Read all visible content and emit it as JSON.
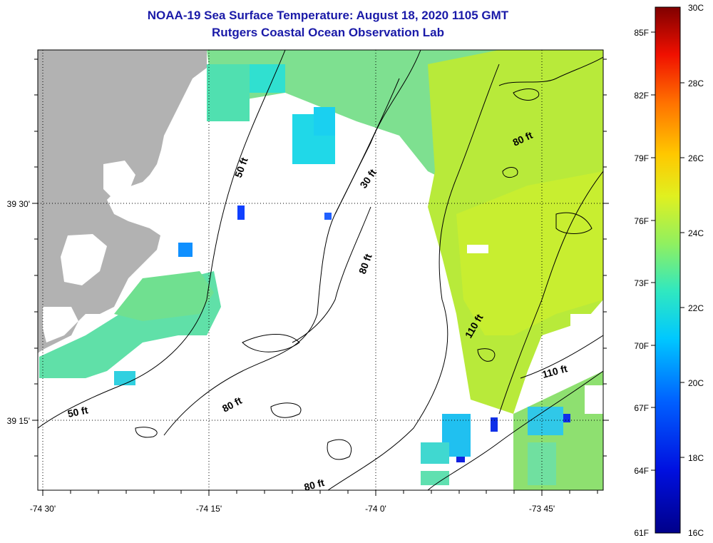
{
  "title": "NOAA-19 Sea Surface Temperature:  August 18, 2020 1105 GMT",
  "subtitle": "Rutgers Coastal Ocean Observation Lab",
  "axes": {
    "lon_ticks": [
      "-74 30'",
      "-74 15'",
      "-74 0'",
      "-73 45'"
    ],
    "lat_ticks": [
      "39 30'",
      "39 15'"
    ]
  },
  "contours": {
    "labels": [
      "50 ft",
      "30 ft",
      "80 ft",
      "80 ft",
      "110 ft",
      "110 ft",
      "50 ft",
      "80 ft",
      "80 ft"
    ]
  },
  "colorbar": {
    "celsius": [
      "30C",
      "28C",
      "26C",
      "24C",
      "22C",
      "20C",
      "18C",
      "16C"
    ],
    "fahrenheit": [
      "85F",
      "82F",
      "79F",
      "76F",
      "73F",
      "70F",
      "67F",
      "64F",
      "61F"
    ],
    "min_c": 16,
    "max_c": 30
  },
  "colors": {
    "land": "#b2b2b2",
    "title": "#1a1aa8"
  }
}
